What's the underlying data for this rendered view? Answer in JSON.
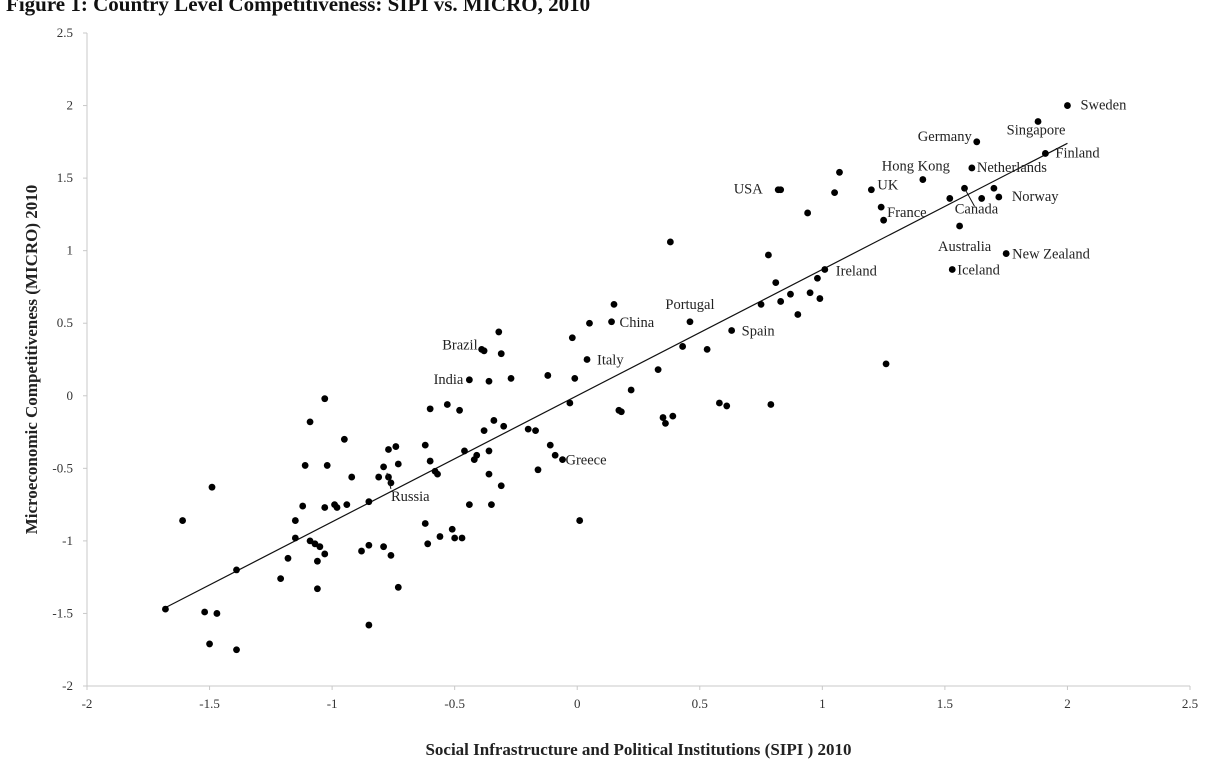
{
  "caption": "Figure 1: Country Level Competitiveness: SIPI vs. MICRO, 2010",
  "chart_data": {
    "type": "scatter",
    "title": "",
    "xlabel": "Social  Infrastructure and Political Institutions (SIPI ) 2010",
    "ylabel": "Microeconomic Competitiveness  (MICRO)  2010",
    "xlim": [
      -2,
      2.5
    ],
    "ylim": [
      -2,
      2.5
    ],
    "xticks": [
      "-2",
      "-1.5",
      "-1",
      "-0.5",
      "0",
      "0.5",
      "1",
      "1.5",
      "2",
      "2.5"
    ],
    "yticks": [
      "-2",
      "-1.5",
      "-1",
      "-0.5",
      "0",
      "0.5",
      "1",
      "1.5",
      "2",
      "2.5"
    ],
    "grid": false,
    "legend": "none",
    "trendline": {
      "x": [
        -1.68,
        2.0
      ],
      "y": [
        -1.46,
        1.74
      ]
    },
    "labeled_points": [
      {
        "label": "Sweden",
        "x": 2.0,
        "y": 2.0
      },
      {
        "label": "Singapore",
        "x": 1.88,
        "y": 1.89
      },
      {
        "label": "Finland",
        "x": 1.91,
        "y": 1.67
      },
      {
        "label": "Germany",
        "x": 1.63,
        "y": 1.75
      },
      {
        "label": "Netherlands",
        "x": 1.61,
        "y": 1.57
      },
      {
        "label": "Hong Kong",
        "x": 1.41,
        "y": 1.49
      },
      {
        "label": "USA",
        "x": 0.82,
        "y": 1.42
      },
      {
        "label": "UK",
        "x": 1.2,
        "y": 1.42
      },
      {
        "label": "France",
        "x": 1.24,
        "y": 1.3
      },
      {
        "label": "Norway",
        "x": 1.72,
        "y": 1.37
      },
      {
        "label": "Canada",
        "x": 1.58,
        "y": 1.43
      },
      {
        "label": "Australia",
        "x": 1.56,
        "y": 1.17
      },
      {
        "label": "New Zealand",
        "x": 1.75,
        "y": 0.98
      },
      {
        "label": "Iceland",
        "x": 1.53,
        "y": 0.87
      },
      {
        "label": "Ireland",
        "x": 1.01,
        "y": 0.87
      },
      {
        "label": "Portugal",
        "x": 0.46,
        "y": 0.51
      },
      {
        "label": "Spain",
        "x": 0.63,
        "y": 0.45
      },
      {
        "label": "China",
        "x": 0.14,
        "y": 0.51
      },
      {
        "label": "Italy",
        "x": 0.04,
        "y": 0.25
      },
      {
        "label": "Brazil",
        "x": -0.39,
        "y": 0.32
      },
      {
        "label": "India",
        "x": -0.44,
        "y": 0.11
      },
      {
        "label": "Greece",
        "x": -0.06,
        "y": -0.44
      },
      {
        "label": "Russia",
        "x": -0.76,
        "y": -0.6
      }
    ],
    "points": [
      [
        -1.68,
        -1.47
      ],
      [
        -1.61,
        -0.86
      ],
      [
        -1.52,
        -1.49
      ],
      [
        -1.5,
        -1.71
      ],
      [
        -1.49,
        -0.63
      ],
      [
        -1.47,
        -1.5
      ],
      [
        -1.39,
        -1.2
      ],
      [
        -1.39,
        -1.75
      ],
      [
        -1.21,
        -1.26
      ],
      [
        -1.18,
        -1.12
      ],
      [
        -1.15,
        -0.98
      ],
      [
        -1.15,
        -0.86
      ],
      [
        -1.12,
        -0.76
      ],
      [
        -1.11,
        -0.48
      ],
      [
        -1.09,
        -0.18
      ],
      [
        -1.09,
        -1.0
      ],
      [
        -1.07,
        -1.02
      ],
      [
        -1.06,
        -1.14
      ],
      [
        -1.06,
        -1.33
      ],
      [
        -1.05,
        -1.04
      ],
      [
        -1.03,
        -0.77
      ],
      [
        -1.03,
        -1.09
      ],
      [
        -1.03,
        -0.02
      ],
      [
        -1.02,
        -0.48
      ],
      [
        -0.99,
        -0.75
      ],
      [
        -0.98,
        -0.77
      ],
      [
        -0.95,
        -0.3
      ],
      [
        -0.94,
        -0.75
      ],
      [
        -0.92,
        -0.56
      ],
      [
        -0.88,
        -1.07
      ],
      [
        -0.85,
        -1.58
      ],
      [
        -0.85,
        -1.03
      ],
      [
        -0.85,
        -0.73
      ],
      [
        -0.81,
        -0.56
      ],
      [
        -0.79,
        -0.49
      ],
      [
        -0.79,
        -1.04
      ],
      [
        -0.77,
        -0.37
      ],
      [
        -0.77,
        -0.56
      ],
      [
        -0.76,
        -1.1
      ],
      [
        -0.74,
        -0.35
      ],
      [
        -0.73,
        -0.47
      ],
      [
        -0.73,
        -1.32
      ],
      [
        -0.62,
        -0.34
      ],
      [
        -0.62,
        -0.88
      ],
      [
        -0.61,
        -1.02
      ],
      [
        -0.6,
        -0.09
      ],
      [
        -0.6,
        -0.45
      ],
      [
        -0.58,
        -0.52
      ],
      [
        -0.57,
        -0.54
      ],
      [
        -0.56,
        -0.97
      ],
      [
        -0.53,
        -0.06
      ],
      [
        -0.51,
        -0.92
      ],
      [
        -0.5,
        -0.98
      ],
      [
        -0.48,
        -0.1
      ],
      [
        -0.47,
        -0.98
      ],
      [
        -0.46,
        -0.38
      ],
      [
        -0.44,
        -0.75
      ],
      [
        -0.42,
        -0.44
      ],
      [
        -0.41,
        -0.41
      ],
      [
        -0.38,
        0.31
      ],
      [
        -0.38,
        -0.24
      ],
      [
        -0.36,
        -0.38
      ],
      [
        -0.36,
        0.1
      ],
      [
        -0.36,
        -0.54
      ],
      [
        -0.35,
        -0.75
      ],
      [
        -0.34,
        -0.17
      ],
      [
        -0.32,
        0.44
      ],
      [
        -0.31,
        -0.62
      ],
      [
        -0.31,
        0.29
      ],
      [
        -0.3,
        -0.21
      ],
      [
        -0.27,
        0.12
      ],
      [
        -0.2,
        -0.23
      ],
      [
        -0.17,
        -0.24
      ],
      [
        -0.16,
        -0.51
      ],
      [
        -0.12,
        0.14
      ],
      [
        -0.11,
        -0.34
      ],
      [
        -0.09,
        -0.41
      ],
      [
        -0.03,
        -0.05
      ],
      [
        -0.02,
        0.4
      ],
      [
        -0.01,
        0.12
      ],
      [
        0.01,
        -0.86
      ],
      [
        0.05,
        0.5
      ],
      [
        0.15,
        0.63
      ],
      [
        0.17,
        -0.1
      ],
      [
        0.18,
        -0.11
      ],
      [
        0.22,
        0.04
      ],
      [
        0.33,
        0.18
      ],
      [
        0.35,
        -0.15
      ],
      [
        0.36,
        -0.19
      ],
      [
        0.38,
        1.06
      ],
      [
        0.39,
        -0.14
      ],
      [
        0.43,
        0.34
      ],
      [
        0.53,
        0.32
      ],
      [
        0.58,
        -0.05
      ],
      [
        0.61,
        -0.07
      ],
      [
        0.75,
        0.63
      ],
      [
        0.78,
        0.97
      ],
      [
        0.79,
        -0.06
      ],
      [
        0.81,
        0.78
      ],
      [
        0.83,
        0.65
      ],
      [
        0.83,
        1.42
      ],
      [
        0.87,
        0.7
      ],
      [
        0.9,
        0.56
      ],
      [
        0.94,
        1.26
      ],
      [
        0.95,
        0.71
      ],
      [
        0.98,
        0.81
      ],
      [
        0.99,
        0.67
      ],
      [
        1.05,
        1.4
      ],
      [
        1.07,
        1.54
      ],
      [
        1.26,
        0.22
      ],
      [
        1.52,
        1.36
      ],
      [
        1.7,
        1.43
      ],
      [
        1.25,
        1.21
      ],
      [
        1.65,
        1.36
      ]
    ]
  }
}
